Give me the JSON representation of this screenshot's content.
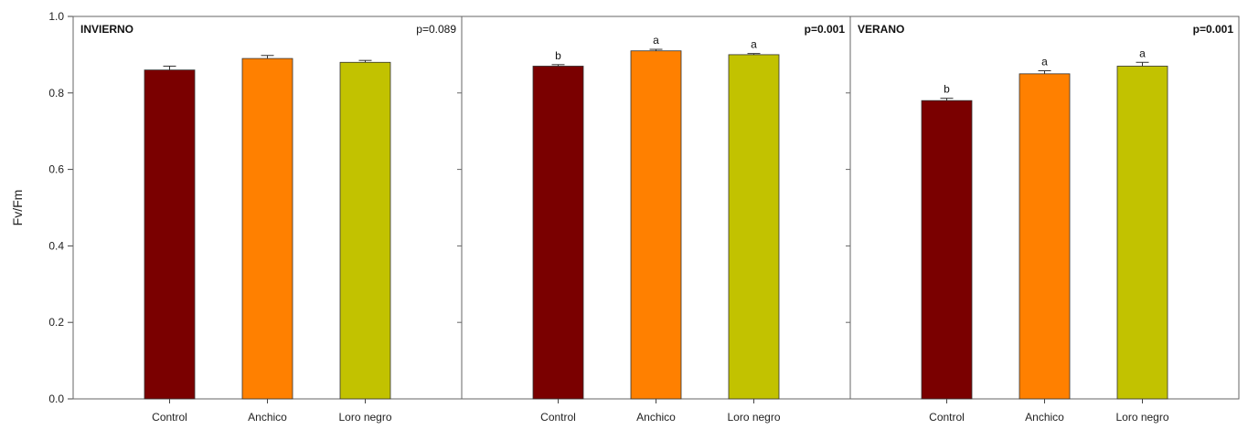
{
  "chart_data": {
    "type": "bar",
    "ylabel": "Fv/Fm",
    "ylim": [
      0,
      1.0
    ],
    "yticks": [
      0.0,
      0.2,
      0.4,
      0.6,
      0.8,
      1.0
    ],
    "ytick_labels": [
      "0.0",
      "0.2",
      "0.4",
      "0.6",
      "0.8",
      "1.0"
    ],
    "grid": false,
    "categories": [
      "Control",
      "Anchico",
      "Loro negro"
    ],
    "colors": [
      "#7a0000",
      "#ff8000",
      "#c2c200"
    ],
    "panels": [
      {
        "title": "INVIERNO",
        "pvalue": "p=0.089",
        "pvalue_bold": false,
        "values": [
          0.86,
          0.89,
          0.88
        ],
        "errors": [
          0.01,
          0.008,
          0.005
        ],
        "letters": [
          "",
          "",
          ""
        ]
      },
      {
        "title": "",
        "pvalue": "p=0.001",
        "pvalue_bold": true,
        "values": [
          0.87,
          0.91,
          0.9
        ],
        "errors": [
          0.004,
          0.004,
          0.003
        ],
        "letters": [
          "b",
          "a",
          "a"
        ]
      },
      {
        "title": "VERANO",
        "pvalue": "p=0.001",
        "pvalue_bold": true,
        "values": [
          0.78,
          0.85,
          0.87
        ],
        "errors": [
          0.006,
          0.008,
          0.01
        ],
        "letters": [
          "b",
          "a",
          "a"
        ]
      }
    ]
  }
}
